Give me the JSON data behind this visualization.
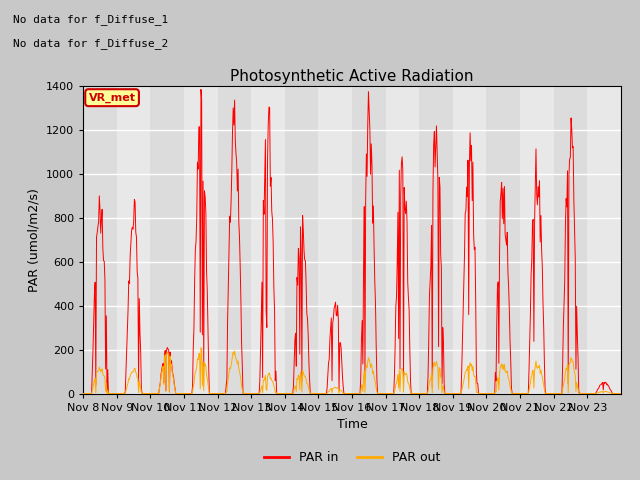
{
  "title": "Photosynthetic Active Radiation",
  "ylabel": "PAR (umol/m2/s)",
  "xlabel": "Time",
  "ylim": [
    0,
    1400
  ],
  "yticks": [
    0,
    200,
    400,
    600,
    800,
    1000,
    1200,
    1400
  ],
  "annotation_text1": "No data for f_Diffuse_1",
  "annotation_text2": "No data for f_Diffuse_2",
  "legend_label1": "PAR in",
  "legend_label2": "PAR out",
  "legend_color1": "#ff0000",
  "legend_color2": "#ffaa00",
  "box_label": "VR_met",
  "box_facecolor": "#ffff99",
  "box_edgecolor": "#cc0000",
  "line_color_in": "#ff0000",
  "line_color_out": "#ffaa00",
  "fig_facecolor": "#c8c8c8",
  "plot_facecolor": "#e8e8e8",
  "xtick_labels": [
    "Nov 8",
    "Nov 9",
    "Nov 10",
    "Nov 11",
    "Nov 12",
    "Nov 13",
    "Nov 14",
    "Nov 15",
    "Nov 16",
    "Nov 17",
    "Nov 18",
    "Nov 19",
    "Nov 20",
    "Nov 21",
    "Nov 22",
    "Nov 23"
  ],
  "num_days": 16
}
